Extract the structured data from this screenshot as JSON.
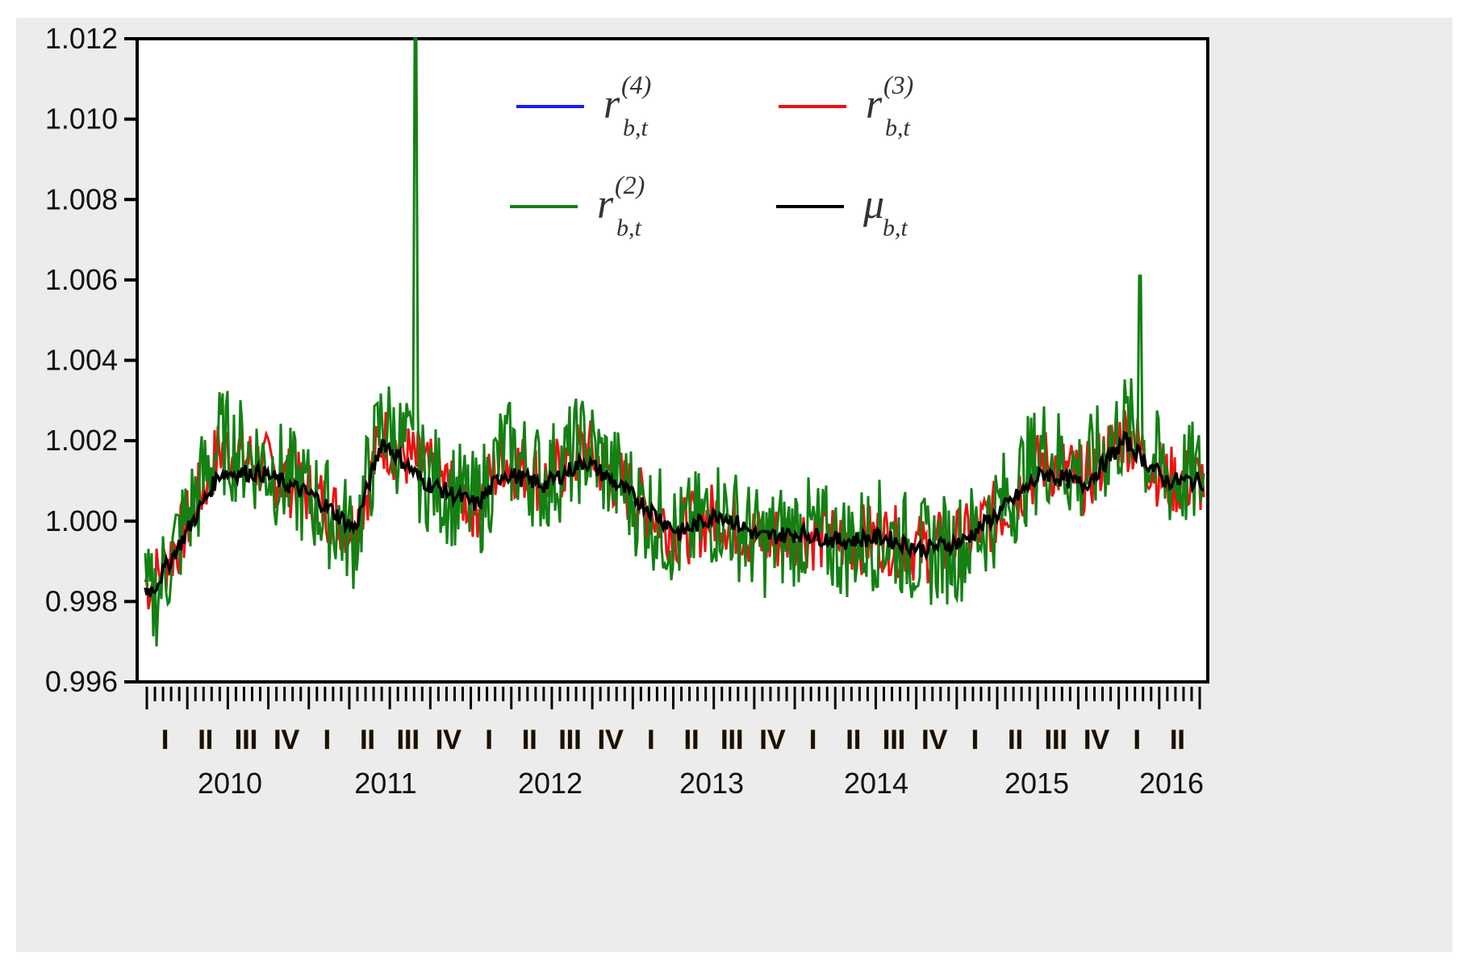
{
  "chart_data": {
    "type": "line",
    "title": "",
    "xlabel": "",
    "ylabel": "",
    "ylim": [
      0.996,
      1.012
    ],
    "yticks": [
      "1.012",
      "1.010",
      "1.008",
      "1.006",
      "1.004",
      "1.002",
      "1.000",
      "0.998",
      "0.996"
    ],
    "quarter_labels": [
      "I",
      "II",
      "III",
      "IV",
      "I",
      "II",
      "III",
      "IV",
      "I",
      "II",
      "III",
      "IV",
      "I",
      "II",
      "III",
      "IV",
      "I",
      "II",
      "III",
      "IV",
      "I",
      "II",
      "III",
      "IV",
      "I",
      "II"
    ],
    "year_labels": [
      "2010",
      "2011",
      "2012",
      "2013",
      "2014",
      "2015",
      "2016"
    ],
    "grid": false,
    "legend_position": "top-center",
    "series": [
      {
        "key": "r4",
        "color": "#1a1aff",
        "symbol": "r",
        "sub": "b,t",
        "sup": "(4)",
        "x": [],
        "values": []
      },
      {
        "key": "r3",
        "color": "#ee1111",
        "symbol": "r",
        "sub": "b,t",
        "sup": "(3)",
        "x": [
          "2010-01",
          "2010-03",
          "2010-06",
          "2010-09",
          "2011-01",
          "2011-04",
          "2011-06",
          "2011-09",
          "2012-01",
          "2012-03",
          "2012-06",
          "2012-09",
          "2013-01",
          "2013-04",
          "2013-07",
          "2013-10",
          "2014-01",
          "2014-04",
          "2014-07",
          "2014-10",
          "2015-01",
          "2015-04",
          "2015-07",
          "2015-10",
          "2016-01",
          "2016-04"
        ],
        "values": [
          0.9985,
          0.9995,
          1.0018,
          1.0014,
          1.0006,
          0.9998,
          1.0021,
          1.0013,
          1.0004,
          1.0016,
          1.001,
          1.0018,
          1.0005,
          0.9997,
          1.0002,
          0.9995,
          0.9997,
          0.9995,
          0.9996,
          0.9993,
          0.9995,
          1.0003,
          1.0015,
          1.001,
          1.0022,
          1.001
        ]
      },
      {
        "key": "r2",
        "color": "#138013",
        "symbol": "r",
        "sub": "b,t",
        "sup": "(2)",
        "x": [
          "2010-01",
          "2010-03",
          "2010-06",
          "2010-09",
          "2011-01",
          "2011-04",
          "2011-06",
          "2011-09",
          "2012-01",
          "2012-03",
          "2012-06",
          "2012-09",
          "2013-01",
          "2013-04",
          "2013-07",
          "2013-10",
          "2014-01",
          "2014-04",
          "2014-07",
          "2014-10",
          "2015-01",
          "2015-04",
          "2015-07",
          "2015-10",
          "2016-01",
          "2016-04"
        ],
        "values": [
          0.998,
          0.9996,
          1.002,
          1.0015,
          1.0005,
          0.9996,
          1.0025,
          1.0012,
          1.0003,
          1.0018,
          1.001,
          1.0019,
          1.0004,
          0.9996,
          1.0003,
          0.9994,
          0.9998,
          0.9994,
          0.9997,
          0.9992,
          0.9994,
          1.0004,
          1.0018,
          1.0011,
          1.0024,
          1.0011
        ]
      },
      {
        "key": "mu",
        "color": "#000000",
        "symbol": "μ",
        "sub": "b,t",
        "sup": "",
        "x": [
          "2010-01",
          "2010-03",
          "2010-06",
          "2010-09",
          "2011-01",
          "2011-04",
          "2011-06",
          "2011-09",
          "2012-01",
          "2012-03",
          "2012-06",
          "2012-09",
          "2013-01",
          "2013-04",
          "2013-07",
          "2013-10",
          "2014-01",
          "2014-04",
          "2014-07",
          "2014-10",
          "2015-01",
          "2015-04",
          "2015-07",
          "2015-10",
          "2016-01",
          "2016-04"
        ],
        "values": [
          0.9983,
          0.9994,
          1.0012,
          1.0012,
          1.0006,
          0.9998,
          1.002,
          1.001,
          1.0004,
          1.0012,
          1.0009,
          1.0015,
          1.0005,
          0.9997,
          1.0002,
          0.9996,
          0.9997,
          0.9995,
          0.9996,
          0.9993,
          0.9995,
          1.0003,
          1.0012,
          1.0009,
          1.002,
          1.001
        ]
      }
    ]
  },
  "colors": {
    "background": "#ececec",
    "plot_background": "#ffffff",
    "axis": "#000000",
    "quarter_label_outline": "#e3a14a"
  }
}
